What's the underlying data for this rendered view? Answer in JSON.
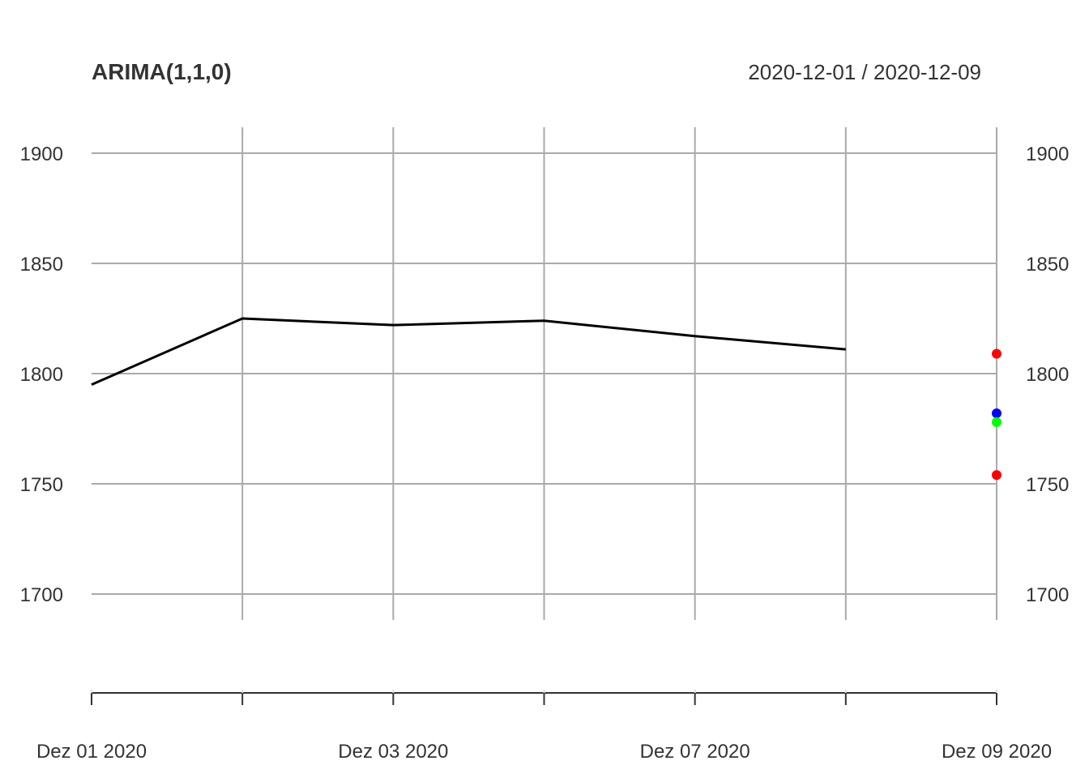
{
  "chart_data": {
    "type": "line",
    "title": "ARIMA(1,1,0)",
    "date_range": "2020-12-01 / 2020-12-09",
    "x_dates": [
      "2020-12-01",
      "2020-12-02",
      "2020-12-03",
      "2020-12-04",
      "2020-12-07",
      "2020-12-08"
    ],
    "series": [
      {
        "values": [
          1795,
          1825,
          1822,
          1824,
          1817,
          1811
        ],
        "color": "#000000"
      }
    ],
    "forecast_date": "2020-12-09",
    "forecast_points": [
      {
        "value": 1809,
        "color": "#ff0000"
      },
      {
        "value": 1782,
        "color": "#0000ff"
      },
      {
        "value": 1778,
        "color": "#00ff00"
      },
      {
        "value": 1754,
        "color": "#ff0000"
      }
    ],
    "x_axis_dates": [
      "2020-12-01",
      "2020-12-02",
      "2020-12-03",
      "2020-12-04",
      "2020-12-07",
      "2020-12-08",
      "2020-12-09"
    ],
    "x_tick_labels": [
      {
        "date": "2020-12-01",
        "label": "Dez 01 2020"
      },
      {
        "date": "2020-12-03",
        "label": "Dez 03 2020"
      },
      {
        "date": "2020-12-07",
        "label": "Dez 07 2020"
      },
      {
        "date": "2020-12-09",
        "label": "Dez 09 2020"
      }
    ],
    "y_ticks": [
      1700,
      1750,
      1800,
      1850,
      1900
    ],
    "ylim": [
      1688,
      1912
    ],
    "grid": true,
    "y_axis_labels": "both sides"
  }
}
